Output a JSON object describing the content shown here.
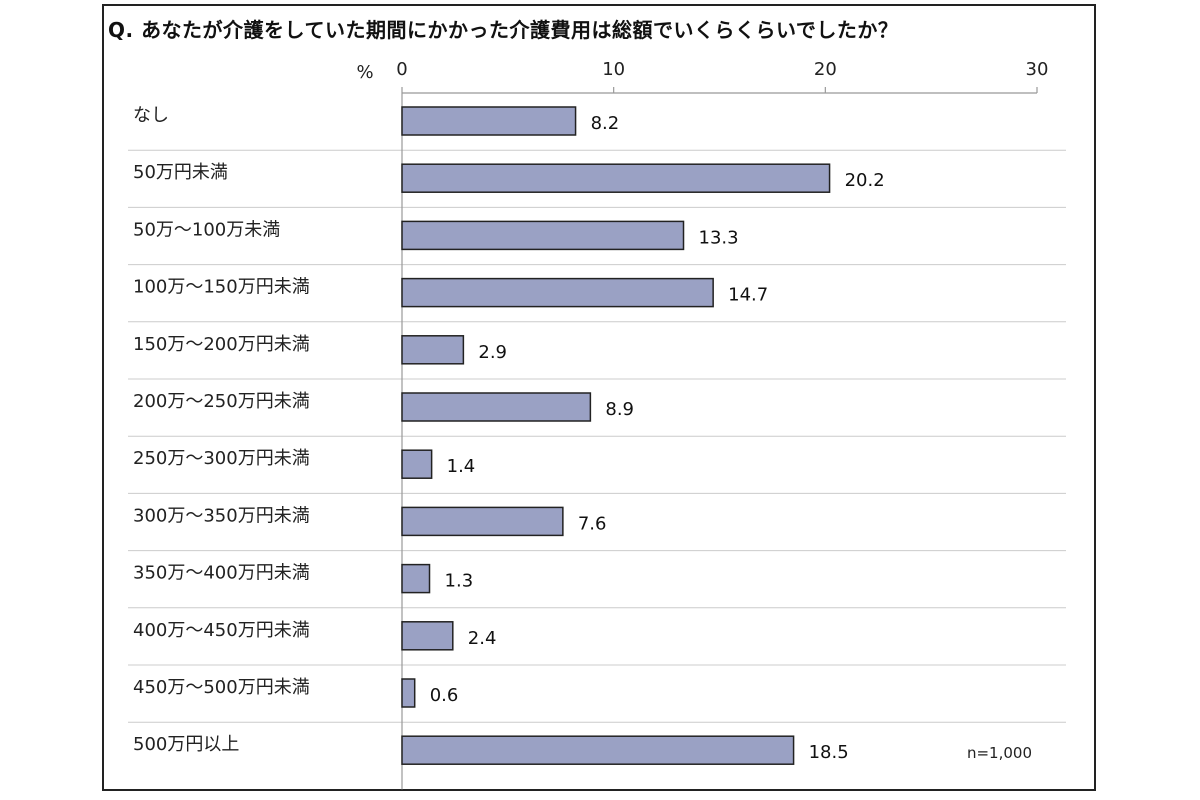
{
  "title": "Q. あなたが介護をしていた期間にかかった介護費用は総額でいくらくらいでしたか？",
  "unit_label": "%",
  "sample_size": "n=1,000",
  "colors": {
    "bar_fill": "#9aa1c4",
    "bar_stroke": "#222222",
    "grid": "#cccccc"
  },
  "chart_data": {
    "type": "bar",
    "orientation": "horizontal",
    "categories": [
      "なし",
      "50万円未満",
      "50万〜100万未満",
      "100万〜150万円未満",
      "150万〜200万円未満",
      "200万〜250万円未満",
      "250万〜300万円未満",
      "300万〜350万円未満",
      "350万〜400万円未満",
      "400万〜450万円未満",
      "450万〜500万円未満",
      "500万円以上"
    ],
    "values": [
      8.2,
      20.2,
      13.3,
      14.7,
      2.9,
      8.9,
      1.4,
      7.6,
      1.3,
      2.4,
      0.6,
      18.5
    ],
    "value_labels": [
      "8.2",
      "20.2",
      "13.3",
      "14.7",
      "2.9",
      "8.9",
      "1.4",
      "7.6",
      "1.3",
      "2.4",
      "0.6",
      "18.5"
    ],
    "xlim": [
      0,
      30
    ],
    "xticks": [
      0,
      10,
      20,
      30
    ],
    "xtick_labels": [
      "0",
      "10",
      "20",
      "30"
    ],
    "axis_position": "top",
    "grid": true,
    "legend": "none"
  }
}
